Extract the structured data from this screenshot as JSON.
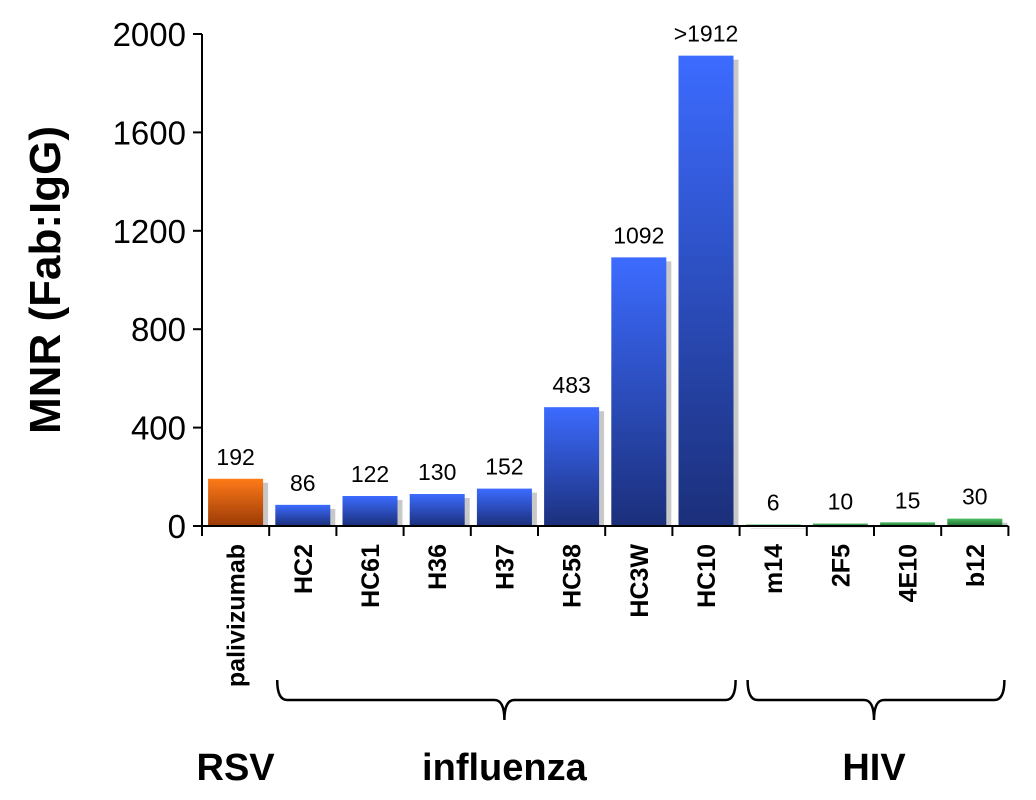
{
  "chart_data": {
    "type": "bar",
    "ylabel": "MNR (Fab:IgG)",
    "ylim": [
      0,
      2000
    ],
    "yticks": [
      0,
      400,
      800,
      1200,
      1600,
      2000
    ],
    "grid": false,
    "categories": [
      "palivizumab",
      "HC2",
      "HC61",
      "H36",
      "H37",
      "HC58",
      "HC3W",
      "HC10",
      "m14",
      "2F5",
      "4E10",
      "b12"
    ],
    "values": [
      192,
      86,
      122,
      130,
      152,
      483,
      1092,
      1912,
      6,
      10,
      15,
      30
    ],
    "data_labels": [
      "192",
      "86",
      "122",
      "130",
      "152",
      "483",
      "1092",
      ">1912",
      "6",
      "10",
      "15",
      "30"
    ],
    "groups": [
      {
        "name": "RSV",
        "from": 0,
        "to": 0,
        "color": "#e86a10"
      },
      {
        "name": "influenza",
        "from": 1,
        "to": 7,
        "color": "#2f5fe0"
      },
      {
        "name": "HIV",
        "from": 8,
        "to": 11,
        "color": "#3a9a4a"
      }
    ]
  }
}
